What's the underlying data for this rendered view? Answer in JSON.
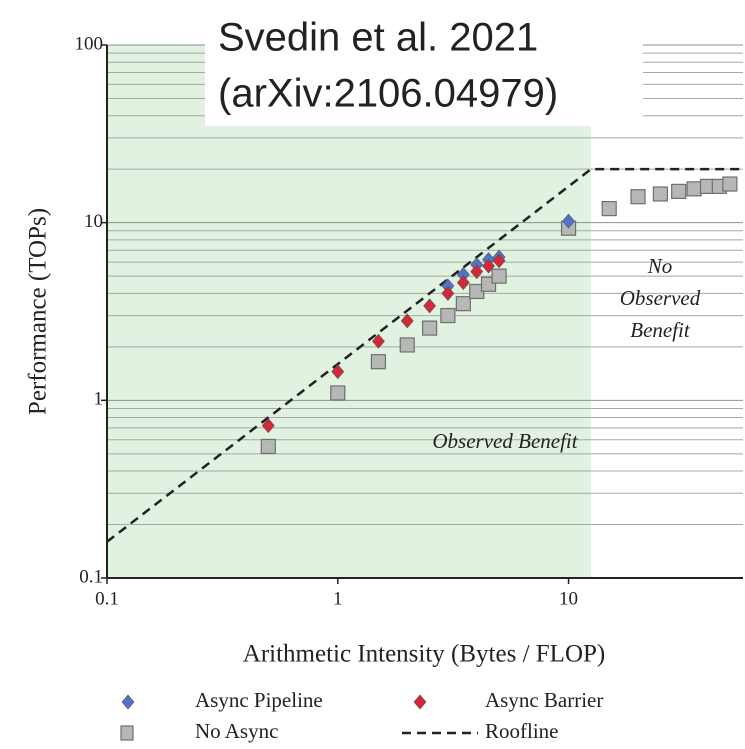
{
  "chart_data": {
    "type": "scatter",
    "xlog": true,
    "ylog": true,
    "x_label": "Arithmetic Intensity (Bytes / FLOP)",
    "y_label": "Performance (TOPs)",
    "xlim": [
      0.1,
      57
    ],
    "ylim": [
      0.1,
      100
    ],
    "xticks": [
      0.1,
      1,
      10
    ],
    "yticks": [
      0.1,
      1,
      10,
      100
    ],
    "ygrid_minor": [
      0.2,
      0.3,
      0.4,
      0.5,
      0.6,
      0.7,
      0.8,
      0.9,
      2,
      3,
      4,
      5,
      6,
      7,
      8,
      9,
      20,
      30,
      40,
      50,
      60,
      70,
      80,
      90
    ],
    "benefit_region_x": [
      0.1,
      12.5
    ],
    "benefit_color": "#e1f2e1",
    "overlay": [
      "Svedin et al. 2021",
      "(arXiv:2106.04979)"
    ],
    "annotations": [
      {
        "lines": [
          "No",
          "Observed",
          "Benefit"
        ]
      },
      {
        "lines": [
          "Observed Benefit"
        ]
      }
    ],
    "series": [
      {
        "name": "Roofline",
        "style": "dashed-line",
        "color": "#222222",
        "x": [
          0.1,
          12.5,
          57
        ],
        "values": [
          0.16,
          20,
          20
        ]
      },
      {
        "name": "No Async",
        "marker": "square",
        "color": "#b5b8b5",
        "x": [
          0.5,
          1,
          1.5,
          2,
          2.5,
          3,
          3.5,
          4,
          4.5,
          5,
          10,
          15,
          20,
          25,
          30,
          35,
          40,
          45,
          50
        ],
        "values": [
          0.55,
          1.1,
          1.65,
          2.05,
          2.55,
          3.0,
          3.5,
          4.1,
          4.5,
          5.0,
          9.3,
          12,
          14,
          14.5,
          15,
          15.5,
          16,
          16,
          16.5
        ]
      },
      {
        "name": "Async Pipeline",
        "marker": "diamond",
        "color": "#4f74c9",
        "x": [
          3,
          3.5,
          4,
          4.5,
          5,
          10
        ],
        "values": [
          4.4,
          5.1,
          5.8,
          6.2,
          6.4,
          10.2
        ]
      },
      {
        "name": "Async Barrier",
        "marker": "diamond",
        "color": "#d3283a",
        "x": [
          0.5,
          1,
          1.5,
          2,
          2.5,
          3,
          3.5,
          4,
          4.5,
          5
        ],
        "values": [
          0.72,
          1.45,
          2.15,
          2.8,
          3.4,
          4.0,
          4.6,
          5.3,
          5.7,
          6.1
        ]
      }
    ],
    "legend_order": [
      2,
      3,
      1,
      0
    ]
  }
}
